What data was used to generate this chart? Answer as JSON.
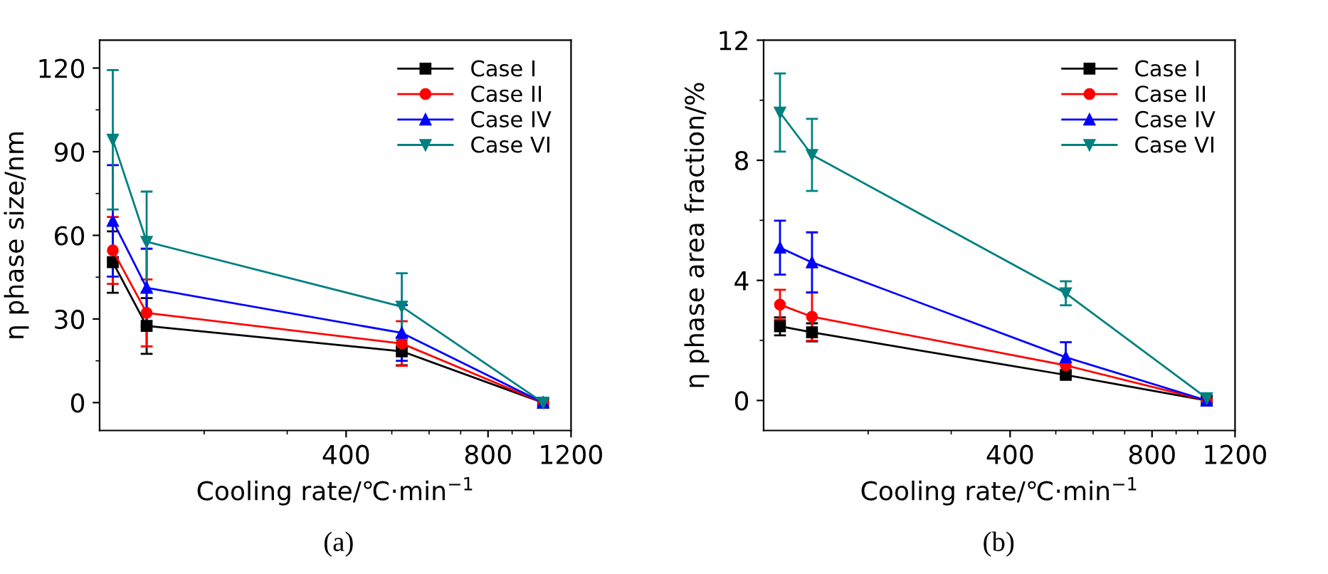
{
  "chart_data": [
    {
      "type": "line",
      "xlabel": "Cooling rate/℃·min$^{−1}$",
      "ylabel": "η phase size/nm",
      "log": "x",
      "legend": "top right",
      "x": [
        128,
        151,
        525,
        1047
      ],
      "xlim": [
        120,
        1200
      ],
      "xticks": [
        400,
        800,
        1200
      ],
      "ylim": [
        -10,
        130
      ],
      "yticks": [
        0,
        30,
        60,
        90,
        120
      ],
      "annotations": [
        "(a)"
      ],
      "series": [
        {
          "name": "Case I",
          "color": "#000000",
          "marker": "square",
          "values": [
            50.4,
            27.5,
            18.4,
            0
          ],
          "errors": [
            11,
            10,
            5,
            null
          ]
        },
        {
          "name": "Case II",
          "color": "#ff0000",
          "marker": "circle",
          "values": [
            54.6,
            32.2,
            21.2,
            0
          ],
          "errors": [
            12,
            12,
            8,
            null
          ]
        },
        {
          "name": "Case IV",
          "color": "#0000ff",
          "marker": "triangle",
          "values": [
            65.2,
            41.2,
            25,
            0
          ],
          "errors": [
            20,
            14,
            10,
            null
          ]
        },
        {
          "name": "Case VI",
          "color": "#008080",
          "marker": "triangle_down",
          "values": [
            94.3,
            57.7,
            34.4,
            0
          ],
          "errors": [
            25,
            18,
            12,
            null
          ]
        }
      ]
    },
    {
      "type": "line",
      "xlabel": "Cooling rate/℃·min$^{−1}$",
      "ylabel": "η phase area fraction/%",
      "log": "x",
      "legend": "top right",
      "x": [
        130,
        152,
        525,
        1045
      ],
      "xlim": [
        120,
        1200
      ],
      "xticks": [
        400,
        800,
        1200
      ],
      "ylim": [
        -1,
        12
      ],
      "yticks": [
        0,
        4,
        8,
        12
      ],
      "annotations": [
        "(b)"
      ],
      "series": [
        {
          "name": "Case I",
          "color": "#000000",
          "marker": "square",
          "values": [
            2.47,
            2.27,
            0.85,
            0
          ],
          "errors": [
            0.3,
            0.3,
            0.1,
            null
          ]
        },
        {
          "name": "Case II",
          "color": "#ff0000",
          "marker": "circle",
          "values": [
            3.19,
            2.79,
            1.17,
            0
          ],
          "errors": [
            0.5,
            0.8,
            null,
            null
          ]
        },
        {
          "name": "Case IV",
          "color": "#0000ff",
          "marker": "triangle",
          "values": [
            5.09,
            4.6,
            1.44,
            0
          ],
          "errors": [
            0.9,
            1.0,
            0.5,
            null
          ]
        },
        {
          "name": "Case VI",
          "color": "#008080",
          "marker": "triangle_down",
          "values": [
            9.59,
            8.18,
            3.57,
            0.08
          ],
          "errors": [
            1.3,
            1.2,
            0.4,
            null
          ]
        }
      ]
    }
  ]
}
